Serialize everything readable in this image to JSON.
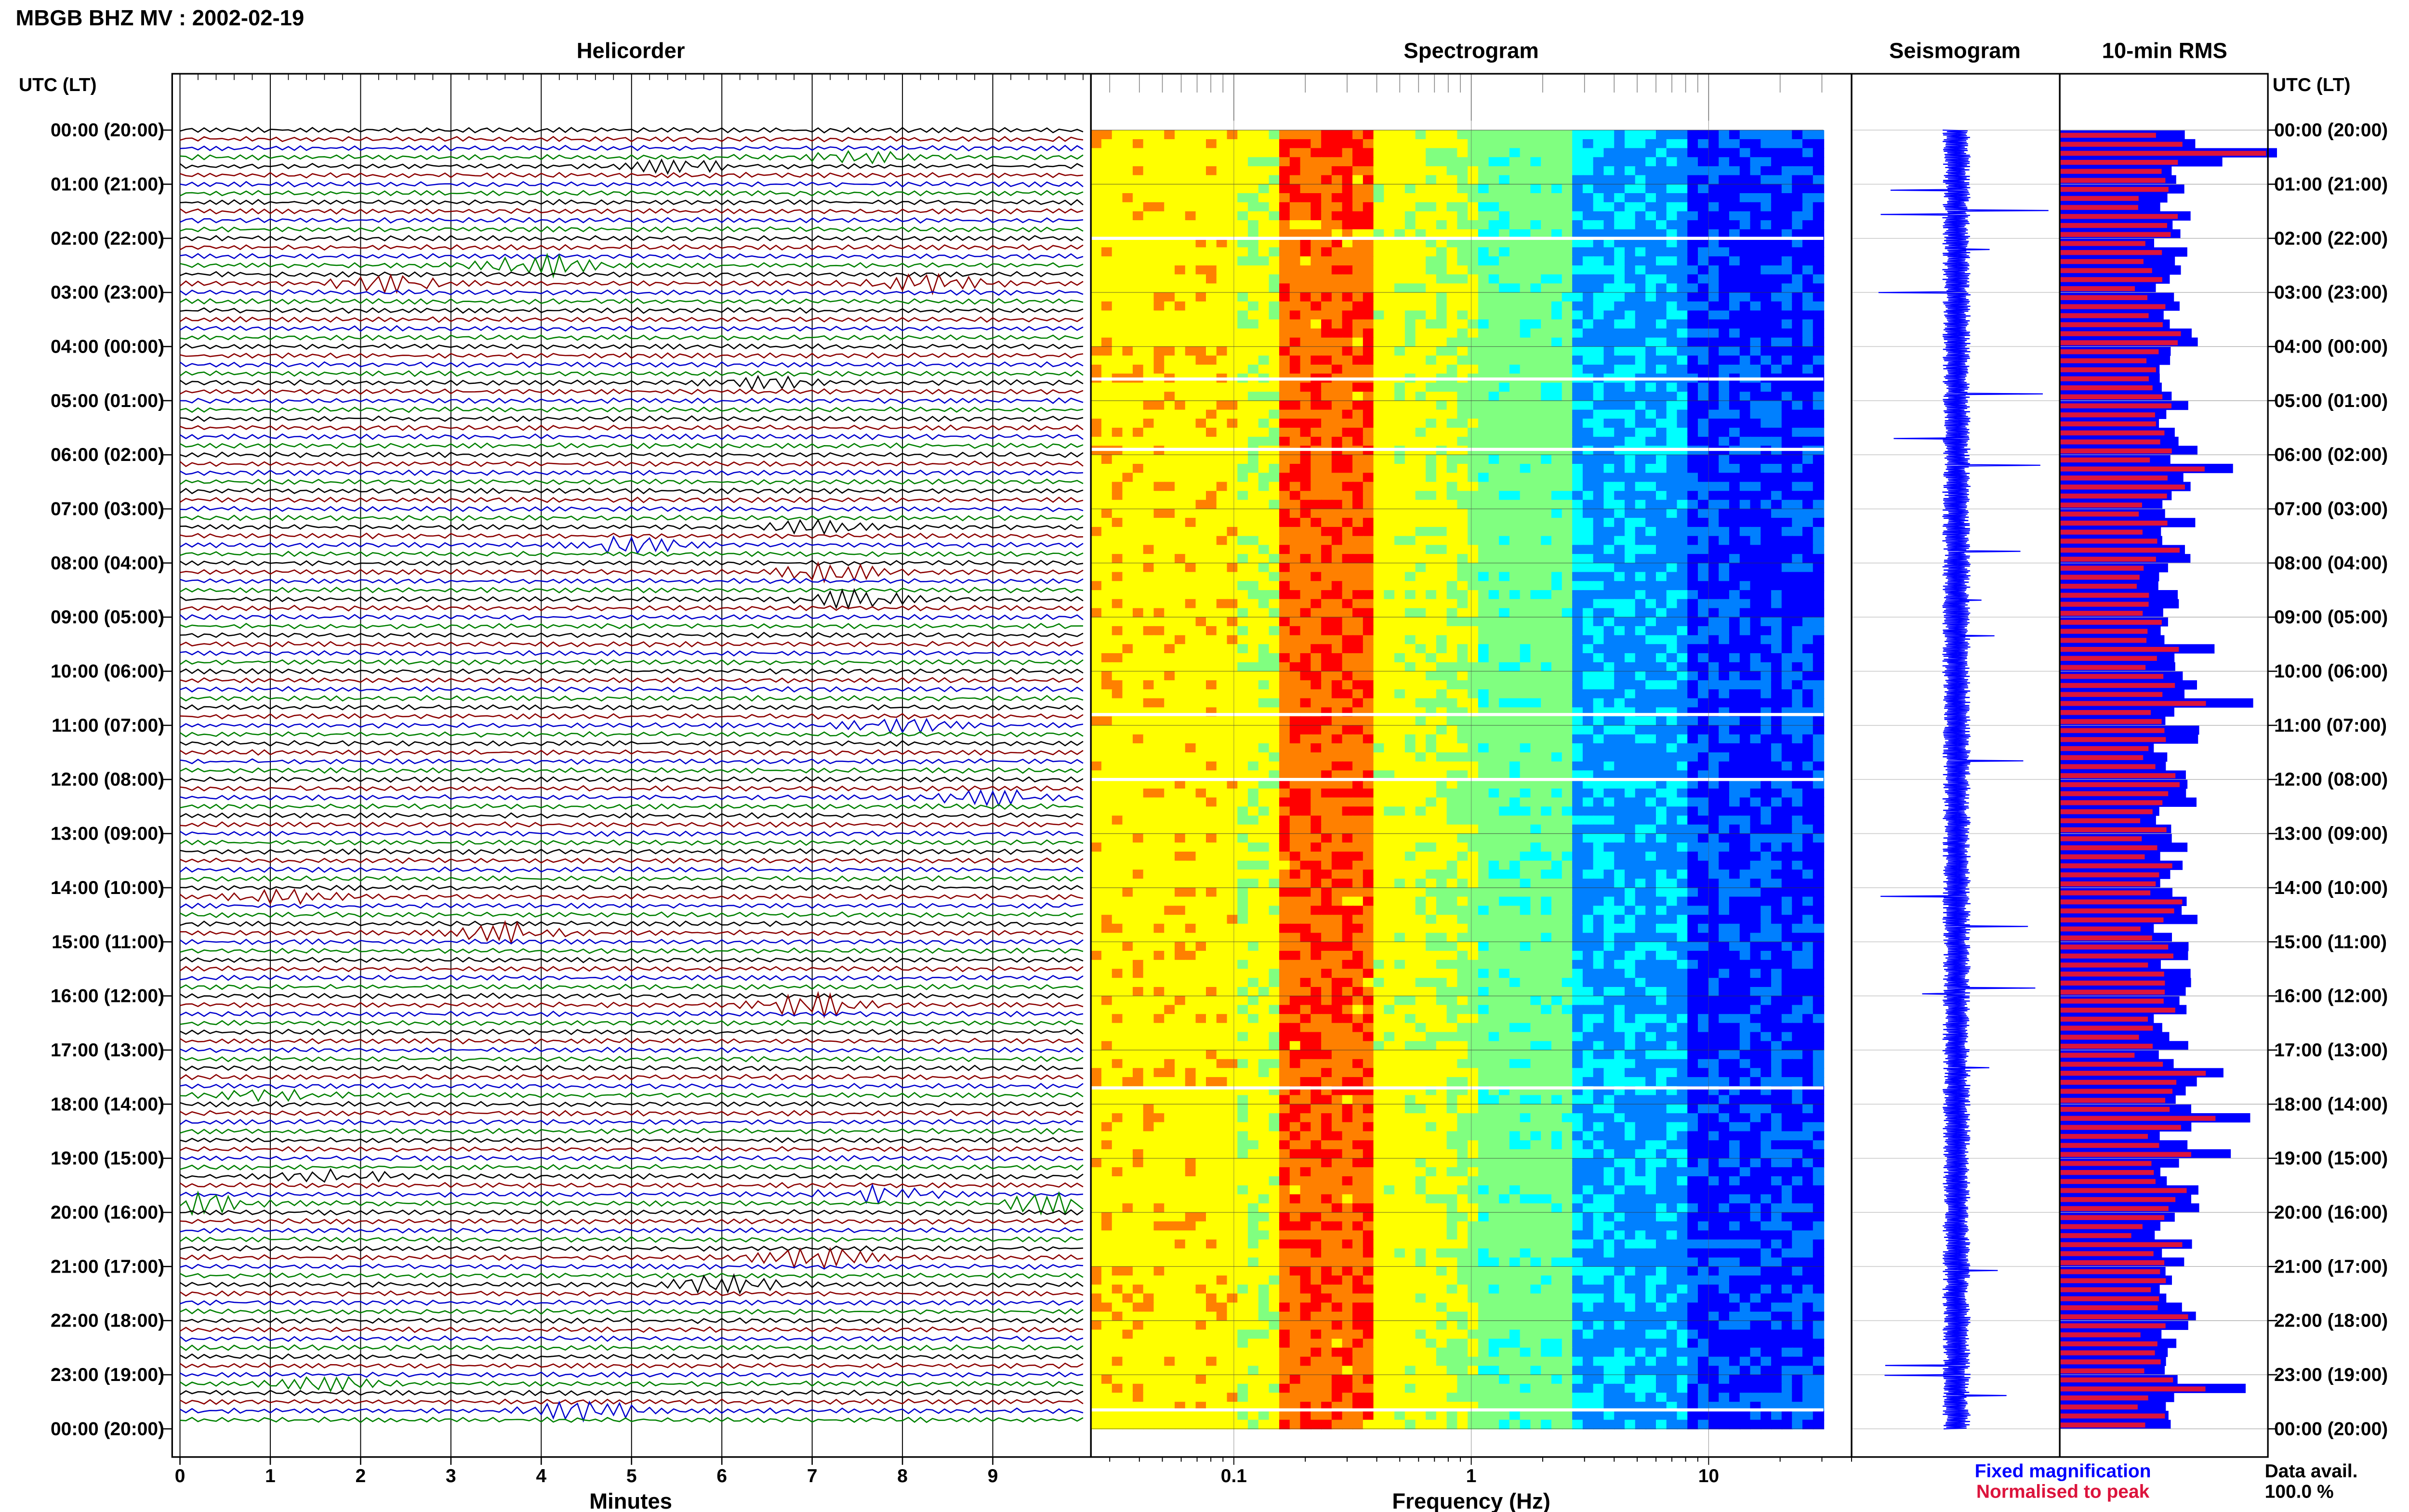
{
  "header": {
    "title": "MBGB BHZ MV : 2002-02-19"
  },
  "chart_data": [
    {
      "type": "line",
      "panel": "helicorder",
      "title": "Helicorder",
      "xlabel": "Minutes",
      "ylabel": "UTC (LT)",
      "x_ticks": [
        "0",
        "1",
        "2",
        "3",
        "4",
        "5",
        "6",
        "7",
        "8",
        "9"
      ],
      "xlim": [
        0,
        10
      ],
      "y_tick_labels": [
        "00:00 (20:00)",
        "01:00 (21:00)",
        "02:00 (22:00)",
        "03:00 (23:00)",
        "04:00 (00:00)",
        "05:00 (01:00)",
        "06:00 (02:00)",
        "07:00 (03:00)",
        "08:00 (04:00)",
        "09:00 (05:00)",
        "10:00 (06:00)",
        "11:00 (07:00)",
        "12:00 (08:00)",
        "13:00 (09:00)",
        "14:00 (10:00)",
        "15:00 (11:00)",
        "16:00 (12:00)",
        "17:00 (13:00)",
        "18:00 (14:00)",
        "19:00 (15:00)",
        "20:00 (16:00)",
        "21:00 (17:00)",
        "22:00 (18:00)",
        "23:00 (19:00)",
        "00:00 (20:00)"
      ],
      "row_colors": [
        "#000000",
        "#8b0000",
        "#0000cd",
        "#008000"
      ],
      "events": [
        {
          "hour": 0.6,
          "minute": 5.5,
          "color": "#000000",
          "amp": 1.5
        },
        {
          "hour": 0.5,
          "minute": 7.5,
          "color": "#008000",
          "amp": 1.2
        },
        {
          "hour": 2.5,
          "minute": 4.0,
          "color": "#000000",
          "amp": 2.6
        },
        {
          "hour": 2.8,
          "minute": 2.3,
          "color": "#008000",
          "amp": 2.0
        },
        {
          "hour": 2.9,
          "minute": 8.3,
          "color": "#000000",
          "amp": 2.4
        },
        {
          "hour": 4.6,
          "minute": 6.5,
          "color": "#000000",
          "amp": 1.3
        },
        {
          "hour": 7.3,
          "minute": 7.0,
          "color": "#008000",
          "amp": 1.3
        },
        {
          "hour": 7.7,
          "minute": 5.0,
          "color": "#0000cd",
          "amp": 2.0
        },
        {
          "hour": 8.2,
          "minute": 7.2,
          "color": "#8b0000",
          "amp": 2.2
        },
        {
          "hour": 8.6,
          "minute": 7.5,
          "color": "#000000",
          "amp": 2.2
        },
        {
          "hour": 11.0,
          "minute": 8.0,
          "color": "#0000cd",
          "amp": 1.6
        },
        {
          "hour": 12.3,
          "minute": 9.0,
          "color": "#0000cd",
          "amp": 1.8
        },
        {
          "hour": 14.1,
          "minute": 1.2,
          "color": "#0000cd",
          "amp": 1.6
        },
        {
          "hour": 14.9,
          "minute": 3.6,
          "color": "#000000",
          "amp": 2.4
        },
        {
          "hour": 16.2,
          "minute": 7.0,
          "color": "#0000cd",
          "amp": 2.8
        },
        {
          "hour": 17.9,
          "minute": 1.0,
          "color": "#000000",
          "amp": 1.3
        },
        {
          "hour": 19.3,
          "minute": 1.8,
          "color": "#000000",
          "amp": 1.6
        },
        {
          "hour": 19.8,
          "minute": 0.2,
          "color": "#8b0000",
          "amp": 2.6
        },
        {
          "hour": 19.8,
          "minute": 9.7,
          "color": "#000000",
          "amp": 2.6
        },
        {
          "hour": 19.6,
          "minute": 7.7,
          "color": "#0000cd",
          "amp": 2.0
        },
        {
          "hour": 20.8,
          "minute": 7.0,
          "color": "#0000cd",
          "amp": 2.6
        },
        {
          "hour": 21.4,
          "minute": 6.0,
          "color": "#8b0000",
          "amp": 2.2
        },
        {
          "hour": 23.2,
          "minute": 1.6,
          "color": "#008000",
          "amp": 1.6
        },
        {
          "hour": 23.7,
          "minute": 4.5,
          "color": "#0000cd",
          "amp": 2.4
        }
      ]
    },
    {
      "type": "heatmap",
      "panel": "spectrogram",
      "title": "Spectrogram",
      "xlabel": "Frequency (Hz)",
      "x_scale": "log",
      "x_tick_labels": [
        "0.1",
        "1",
        "10"
      ],
      "xlim": [
        0.025,
        40
      ],
      "colormap": [
        "#00008b",
        "#0000ff",
        "#0080ff",
        "#00ffff",
        "#80ff80",
        "#ffff00",
        "#ff8000",
        "#ff0000"
      ],
      "gap_hours": [
        2.0,
        4.6,
        5.9,
        10.8,
        12.0,
        17.7,
        23.65
      ]
    },
    {
      "type": "line",
      "panel": "seismogram",
      "title": "Seismogram",
      "color": "#0000ff",
      "legend": "Fixed magnification"
    },
    {
      "type": "bar",
      "panel": "rms",
      "title": "10-min RMS",
      "series": [
        {
          "name": "Fixed magnification",
          "color": "#0000ff"
        },
        {
          "name": "Normalised to peak",
          "color": "#dc143c"
        }
      ],
      "data_availability_label": "Data avail.",
      "data_availability_value": "100.0 %"
    }
  ]
}
